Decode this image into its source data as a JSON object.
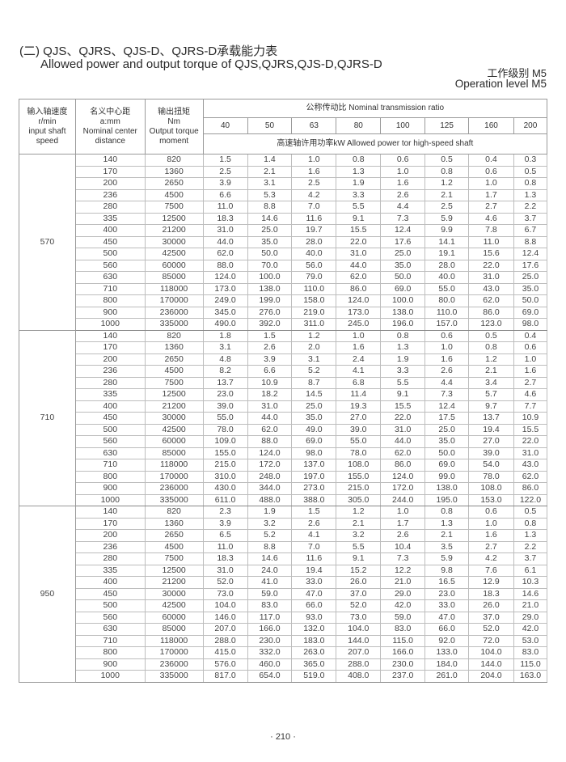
{
  "title_cn": "(二) QJS、QJRS、QJS-D、QJRS-D承载能力表",
  "title_en": "Allowed power and output torque of QJS,QJRS,QJS-D,QJRS-D",
  "level_cn": "工作级别 M5",
  "level_en": "Operation level  M5",
  "header": {
    "speed": [
      "输入轴速度",
      "r/min",
      "input shaft",
      "speed"
    ],
    "center": [
      "名义中心距",
      "a:mm",
      "Nominal center",
      "distance"
    ],
    "torque": [
      "输出扭矩",
      "Nm",
      "Output torque",
      "moment"
    ],
    "ratio_title": "公称传动比  Nominal transmission ratio",
    "ratios": [
      "40",
      "50",
      "63",
      "80",
      "100",
      "125",
      "160",
      "200"
    ],
    "power_title": "高速轴许用功率kW  Allowed power tor high-speed shaft"
  },
  "centers": [
    "140",
    "170",
    "200",
    "236",
    "280",
    "335",
    "400",
    "450",
    "500",
    "560",
    "630",
    "710",
    "800",
    "900",
    "1000"
  ],
  "torques": [
    "820",
    "1360",
    "2650",
    "4500",
    "7500",
    "12500",
    "21200",
    "30000",
    "42500",
    "60000",
    "85000",
    "118000",
    "170000",
    "236000",
    "335000"
  ],
  "groups": [
    {
      "speed": "570",
      "power": [
        [
          "1.5",
          "1.4",
          "1.0",
          "0.8",
          "0.6",
          "0.5",
          "0.4",
          "0.3"
        ],
        [
          "2.5",
          "2.1",
          "1.6",
          "1.3",
          "1.0",
          "0.8",
          "0.6",
          "0.5"
        ],
        [
          "3.9",
          "3.1",
          "2.5",
          "1.9",
          "1.6",
          "1.2",
          "1.0",
          "0.8"
        ],
        [
          "6.6",
          "5.3",
          "4.2",
          "3.3",
          "2.6",
          "2.1",
          "1.7",
          "1.3"
        ],
        [
          "11.0",
          "8.8",
          "7.0",
          "5.5",
          "4.4",
          "2.5",
          "2.7",
          "2.2"
        ],
        [
          "18.3",
          "14.6",
          "11.6",
          "9.1",
          "7.3",
          "5.9",
          "4.6",
          "3.7"
        ],
        [
          "31.0",
          "25.0",
          "19.7",
          "15.5",
          "12.4",
          "9.9",
          "7.8",
          "6.7"
        ],
        [
          "44.0",
          "35.0",
          "28.0",
          "22.0",
          "17.6",
          "14.1",
          "11.0",
          "8.8"
        ],
        [
          "62.0",
          "50.0",
          "40.0",
          "31.0",
          "25.0",
          "19.1",
          "15.6",
          "12.4"
        ],
        [
          "88.0",
          "70.0",
          "56.0",
          "44.0",
          "35.0",
          "28.0",
          "22.0",
          "17.6"
        ],
        [
          "124.0",
          "100.0",
          "79.0",
          "62.0",
          "50.0",
          "40.0",
          "31.0",
          "25.0"
        ],
        [
          "173.0",
          "138.0",
          "110.0",
          "86.0",
          "69.0",
          "55.0",
          "43.0",
          "35.0"
        ],
        [
          "249.0",
          "199.0",
          "158.0",
          "124.0",
          "100.0",
          "80.0",
          "62.0",
          "50.0"
        ],
        [
          "345.0",
          "276.0",
          "219.0",
          "173.0",
          "138.0",
          "110.0",
          "86.0",
          "69.0"
        ],
        [
          "490.0",
          "392.0",
          "311.0",
          "245.0",
          "196.0",
          "157.0",
          "123.0",
          "98.0"
        ]
      ]
    },
    {
      "speed": "710",
      "power": [
        [
          "1.8",
          "1.5",
          "1.2",
          "1.0",
          "0.8",
          "0.6",
          "0.5",
          "0.4"
        ],
        [
          "3.1",
          "2.6",
          "2.0",
          "1.6",
          "1.3",
          "1.0",
          "0.8",
          "0.6"
        ],
        [
          "4.8",
          "3.9",
          "3.1",
          "2.4",
          "1.9",
          "1.6",
          "1.2",
          "1.0"
        ],
        [
          "8.2",
          "6.6",
          "5.2",
          "4.1",
          "3.3",
          "2.6",
          "2.1",
          "1.6"
        ],
        [
          "13.7",
          "10.9",
          "8.7",
          "6.8",
          "5.5",
          "4.4",
          "3.4",
          "2.7"
        ],
        [
          "23.0",
          "18.2",
          "14.5",
          "11.4",
          "9.1",
          "7.3",
          "5.7",
          "4.6"
        ],
        [
          "39.0",
          "31.0",
          "25.0",
          "19.3",
          "15.5",
          "12.4",
          "9.7",
          "7.7"
        ],
        [
          "55.0",
          "44.0",
          "35.0",
          "27.0",
          "22.0",
          "17.5",
          "13.7",
          "10.9"
        ],
        [
          "78.0",
          "62.0",
          "49.0",
          "39.0",
          "31.0",
          "25.0",
          "19.4",
          "15.5"
        ],
        [
          "109.0",
          "88.0",
          "69.0",
          "55.0",
          "44.0",
          "35.0",
          "27.0",
          "22.0"
        ],
        [
          "155.0",
          "124.0",
          "98.0",
          "78.0",
          "62.0",
          "50.0",
          "39.0",
          "31.0"
        ],
        [
          "215.0",
          "172.0",
          "137.0",
          "108.0",
          "86.0",
          "69.0",
          "54.0",
          "43.0"
        ],
        [
          "310.0",
          "248.0",
          "197.0",
          "155.0",
          "124.0",
          "99.0",
          "78.0",
          "62.0"
        ],
        [
          "430.0",
          "344.0",
          "273.0",
          "215.0",
          "172.0",
          "138.0",
          "108.0",
          "86.0"
        ],
        [
          "611.0",
          "488.0",
          "388.0",
          "305.0",
          "244.0",
          "195.0",
          "153.0",
          "122.0"
        ]
      ]
    },
    {
      "speed": "950",
      "power": [
        [
          "2.3",
          "1.9",
          "1.5",
          "1.2",
          "1.0",
          "0.8",
          "0.6",
          "0.5"
        ],
        [
          "3.9",
          "3.2",
          "2.6",
          "2.1",
          "1.7",
          "1.3",
          "1.0",
          "0.8"
        ],
        [
          "6.5",
          "5.2",
          "4.1",
          "3.2",
          "2.6",
          "2.1",
          "1.6",
          "1.3"
        ],
        [
          "11.0",
          "8.8",
          "7.0",
          "5.5",
          "10.4",
          "3.5",
          "2.7",
          "2.2"
        ],
        [
          "18.3",
          "14.6",
          "11.6",
          "9.1",
          "7.3",
          "5.9",
          "4.2",
          "3.7"
        ],
        [
          "31.0",
          "24.0",
          "19.4",
          "15.2",
          "12.2",
          "9.8",
          "7.6",
          "6.1"
        ],
        [
          "52.0",
          "41.0",
          "33.0",
          "26.0",
          "21.0",
          "16.5",
          "12.9",
          "10.3"
        ],
        [
          "73.0",
          "59.0",
          "47.0",
          "37.0",
          "29.0",
          "23.0",
          "18.3",
          "14.6"
        ],
        [
          "104.0",
          "83.0",
          "66.0",
          "52.0",
          "42.0",
          "33.0",
          "26.0",
          "21.0"
        ],
        [
          "146.0",
          "117.0",
          "93.0",
          "73.0",
          "59.0",
          "47.0",
          "37.0",
          "29.0"
        ],
        [
          "207.0",
          "166.0",
          "132.0",
          "104.0",
          "83.0",
          "66.0",
          "52.0",
          "42.0"
        ],
        [
          "288.0",
          "230.0",
          "183.0",
          "144.0",
          "115.0",
          "92.0",
          "72.0",
          "53.0"
        ],
        [
          "415.0",
          "332.0",
          "263.0",
          "207.0",
          "166.0",
          "133.0",
          "104.0",
          "83.0"
        ],
        [
          "576.0",
          "460.0",
          "365.0",
          "288.0",
          "230.0",
          "184.0",
          "144.0",
          "115.0"
        ],
        [
          "817.0",
          "654.0",
          "519.0",
          "408.0",
          "237.0",
          "261.0",
          "204.0",
          "163.0"
        ]
      ]
    }
  ],
  "page_number": "· 210 ·"
}
